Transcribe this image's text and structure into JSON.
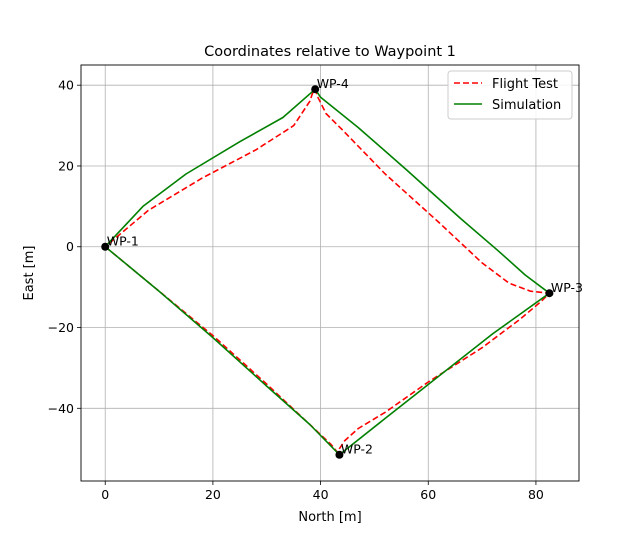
{
  "chart_data": {
    "type": "line",
    "title": "Coordinates relative to Waypoint 1",
    "xlabel": "North [m]",
    "ylabel": "East [m]",
    "xlim": [
      -4.5,
      88
    ],
    "ylim": [
      -58,
      45
    ],
    "xticks": [
      0,
      20,
      40,
      60,
      80
    ],
    "yticks": [
      -40,
      -20,
      0,
      20,
      40
    ],
    "grid": true,
    "legend_position": "top-right",
    "waypoints": [
      {
        "label": "WP-1",
        "x": 0,
        "y": 0
      },
      {
        "label": "WP-2",
        "x": 43.5,
        "y": -51.5
      },
      {
        "label": "WP-3",
        "x": 82.5,
        "y": -11.5
      },
      {
        "label": "WP-4",
        "x": 39,
        "y": 39
      }
    ],
    "series": [
      {
        "name": "Flight Test",
        "color": "#ff0000",
        "style": "dashed",
        "points": [
          [
            0,
            0
          ],
          [
            10,
            -11
          ],
          [
            20,
            -22
          ],
          [
            30,
            -34
          ],
          [
            38,
            -44
          ],
          [
            42,
            -49
          ],
          [
            43.2,
            -51
          ],
          [
            43.5,
            -50
          ],
          [
            44.5,
            -48
          ],
          [
            47,
            -45
          ],
          [
            52,
            -41
          ],
          [
            60,
            -33.5
          ],
          [
            70,
            -25
          ],
          [
            77,
            -18
          ],
          [
            81,
            -13.5
          ],
          [
            82.5,
            -11.5
          ],
          [
            79,
            -11
          ],
          [
            75,
            -9
          ],
          [
            70,
            -4
          ],
          [
            62,
            6
          ],
          [
            52,
            18
          ],
          [
            44,
            29
          ],
          [
            41,
            33
          ],
          [
            39.5,
            37
          ],
          [
            39,
            39
          ],
          [
            38.5,
            38
          ],
          [
            38,
            36
          ],
          [
            35,
            30
          ],
          [
            28,
            24
          ],
          [
            18,
            17
          ],
          [
            8,
            9
          ],
          [
            0,
            0
          ]
        ]
      },
      {
        "name": "Simulation",
        "color": "#008000",
        "style": "solid",
        "points": [
          [
            0,
            0
          ],
          [
            10,
            -11
          ],
          [
            20,
            -22.5
          ],
          [
            30,
            -34.5
          ],
          [
            38,
            -44
          ],
          [
            43.5,
            -51.5
          ],
          [
            52,
            -42.5
          ],
          [
            62,
            -32
          ],
          [
            72,
            -21.5
          ],
          [
            82.5,
            -11.5
          ],
          [
            78,
            -7
          ],
          [
            73,
            -1
          ],
          [
            66,
            7
          ],
          [
            56,
            19
          ],
          [
            47,
            29.5
          ],
          [
            40,
            37
          ],
          [
            39,
            39
          ],
          [
            33,
            32
          ],
          [
            25,
            26
          ],
          [
            15,
            18
          ],
          [
            7,
            10
          ],
          [
            0,
            0
          ]
        ]
      }
    ]
  }
}
